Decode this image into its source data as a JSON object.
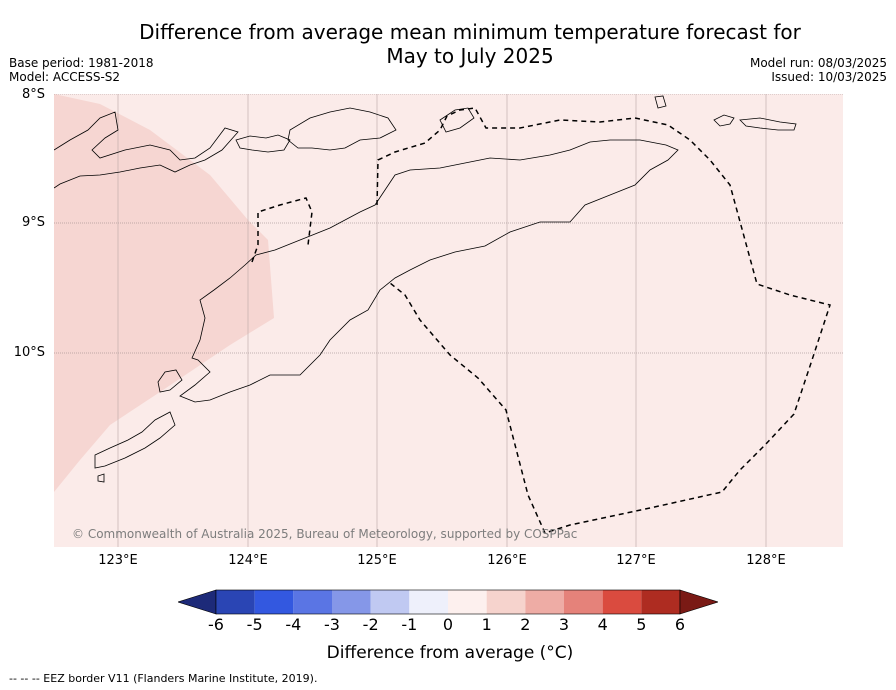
{
  "title_line1": "Difference from average mean minimum temperature forecast for",
  "title_line2": "May to July 2025",
  "meta_left": {
    "base_period": "Base period: 1981-2018",
    "model": "Model: ACCESS-S2"
  },
  "meta_right": {
    "model_run": "Model run: 08/03/2025",
    "issued": "Issued: 10/03/2025"
  },
  "lat_labels": [
    "8°S",
    "9°S",
    "10°S"
  ],
  "lon_labels": [
    "123°E",
    "124°E",
    "125°E",
    "126°E",
    "127°E",
    "128°E"
  ],
  "copyright": "© Commonwealth of Australia 2025, Bureau of Meteorology, supported by COSPPac",
  "colorbar": {
    "ticks": [
      "-6",
      "-5",
      "-4",
      "-3",
      "-2",
      "-1",
      "0",
      "1",
      "2",
      "3",
      "4",
      "5",
      "6"
    ],
    "colors": [
      "#1d2a79",
      "#2a45b4",
      "#3358e0",
      "#5a75e4",
      "#8597e8",
      "#c0c9f2",
      "#eef0fb",
      "#fdf0ee",
      "#f6d3cd",
      "#eeaca5",
      "#e5827a",
      "#da4b3f",
      "#ae2c21",
      "#7a1a15"
    ],
    "label": "Difference from average (°C)"
  },
  "map": {
    "background_class_color": "#fbebe9",
    "warmer_class_color": "#f6d6d2",
    "values_shown": [
      "0 to 1 °C above average (most of region)",
      "1 to 2 °C above average (western part)"
    ]
  },
  "footnote": "--  --  -- EEZ border V11 (Flanders Marine Institute, 2019)."
}
